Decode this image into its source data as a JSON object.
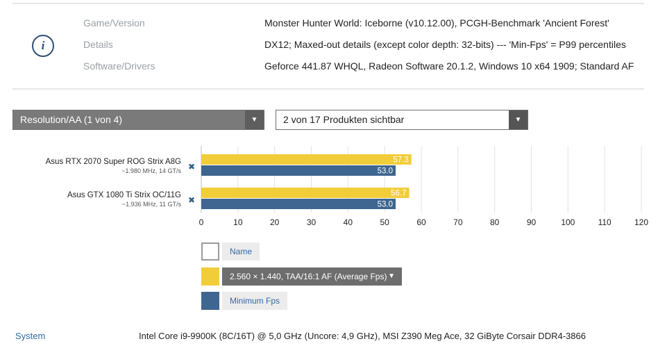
{
  "info": {
    "icon": "info-icon",
    "rows": [
      {
        "label": "Game/Version",
        "value": "Monster Hunter World: Iceborne (v10.12.00), PCGH-Benchmark 'Ancient Forest'"
      },
      {
        "label": "Details",
        "value": "DX12; Maxed-out details (except color depth: 32-bits) --- 'Min-Fps' = P99 percentiles"
      },
      {
        "label": "Software/Drivers",
        "value": "Geforce 441.87 WHQL, Radeon Software 20.1.2, Windows 10 x64 1909; Standard AF"
      }
    ]
  },
  "controls": {
    "resolution_select": "Resolution/AA (1 von 4)",
    "products_select": "2 von 17 Produkten sichtbar"
  },
  "chart_data": {
    "type": "bar",
    "orientation": "horizontal",
    "categories": [
      "Asus RTX 2070 Super ROG Strix A8G",
      "Asus GTX 1080 Ti Strix OC/11G"
    ],
    "subtitles": [
      "~1.980 MHz, 14 GT/s",
      "~1.936 MHz, 11 GT/s"
    ],
    "series": [
      {
        "name": "2.560 × 1.440, TAA/16:1 AF (Average Fps)",
        "values": [
          57.3,
          56.7
        ],
        "color": "#f2cd3a"
      },
      {
        "name": "Minimum Fps",
        "values": [
          53.0,
          53.0
        ],
        "color": "#3e6690"
      }
    ],
    "value_labels": [
      [
        "57.3",
        "56.7"
      ],
      [
        "53.0",
        "53.0"
      ]
    ],
    "xlim": [
      0,
      120
    ],
    "xticks": [
      "0",
      "10",
      "20",
      "30",
      "40",
      "50",
      "60",
      "70",
      "80",
      "90",
      "100",
      "110",
      "120"
    ],
    "grid": true,
    "legend_position": "bottom",
    "remove_icon": "close-x-icon"
  },
  "legend": {
    "name_label": "Name",
    "average_label": "2.560 × 1.440, TAA/16:1 AF (Average Fps)",
    "minimum_label": "Minimum Fps",
    "name_color": "#ffffff",
    "average_color": "#f2cd3a",
    "minimum_color": "#3e6690"
  },
  "system": {
    "label": "System",
    "value": "Intel Core i9-9900K (8C/16T) @ 5,0 GHz (Uncore: 4,9 GHz), MSI Z390 Meg Ace, 32 GiByte Corsair DDR4-3866"
  }
}
